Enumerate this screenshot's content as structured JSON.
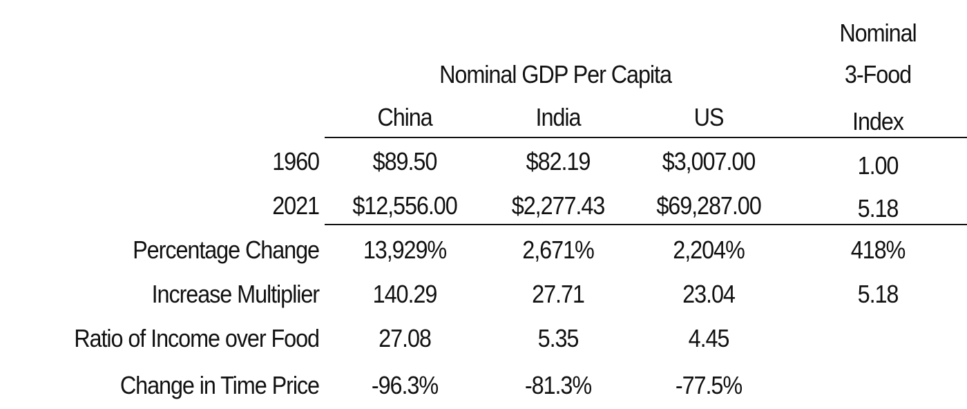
{
  "header": {
    "group_title": "Nominal GDP Per Capita",
    "columns": [
      "China",
      "India",
      "US"
    ],
    "food_index_lines": [
      "Nominal",
      "3-Food",
      "Index"
    ]
  },
  "rows": [
    {
      "label": "1960",
      "values": [
        "$89.50",
        "$82.19",
        "$3,007.00"
      ],
      "food_index": "1.00"
    },
    {
      "label": "2021",
      "values": [
        "$12,556.00",
        "$2,277.43",
        "$69,287.00"
      ],
      "food_index": "5.18"
    },
    {
      "label": "Percentage Change",
      "values": [
        "13,929%",
        "2,671%",
        "2,204%"
      ],
      "food_index": "418%"
    },
    {
      "label": "Increase Multiplier",
      "values": [
        "140.29",
        "27.71",
        "23.04"
      ],
      "food_index": "5.18"
    },
    {
      "label": "Ratio of Income over Food",
      "values": [
        "27.08",
        "5.35",
        "4.45"
      ],
      "food_index": ""
    },
    {
      "label": "Change in Time Price",
      "values": [
        "-96.3%",
        "-81.3%",
        "-77.5%"
      ],
      "food_index": ""
    }
  ]
}
